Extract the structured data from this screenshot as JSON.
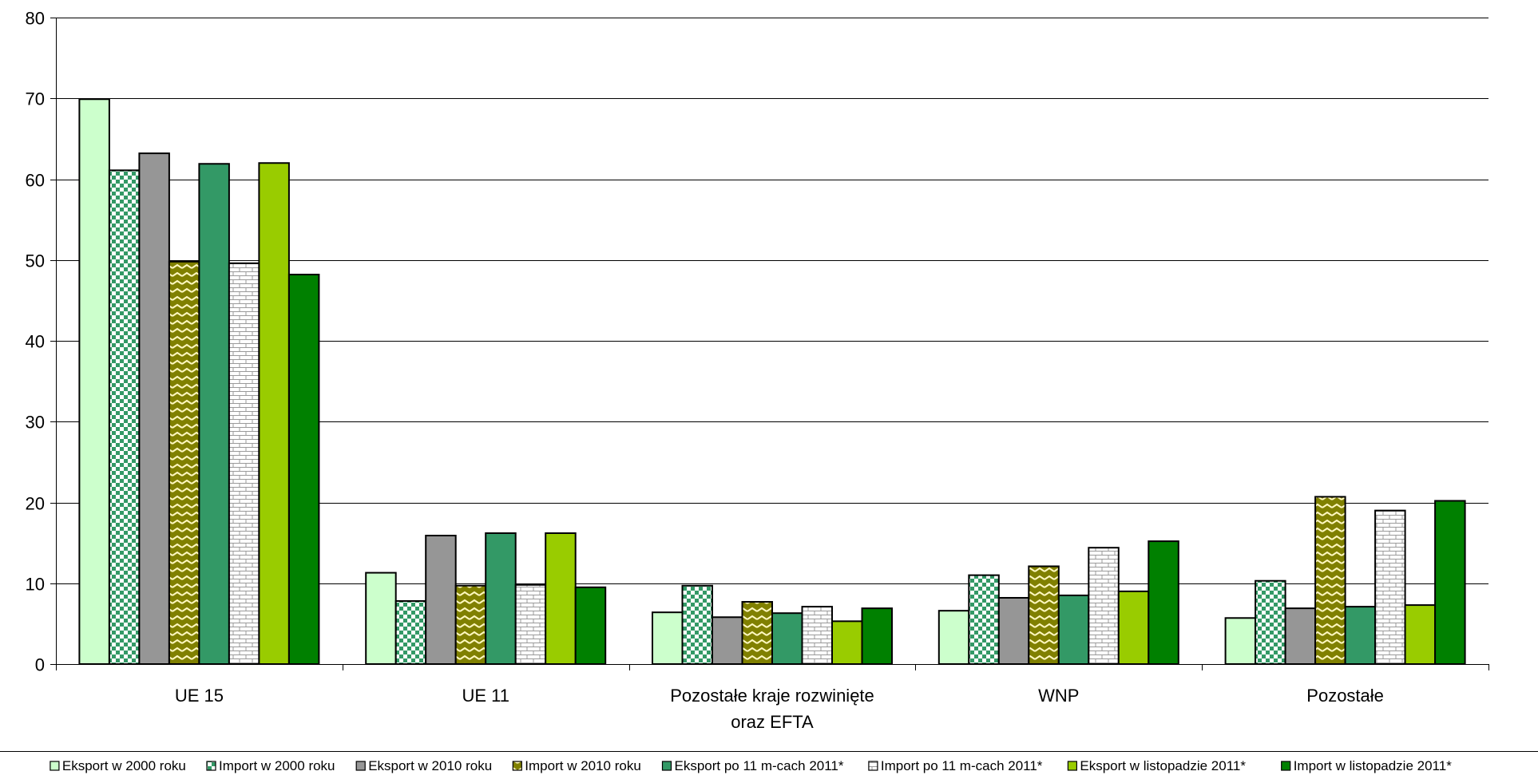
{
  "chart_data": {
    "type": "bar",
    "categories": [
      [
        "UE 15"
      ],
      [
        "UE 11"
      ],
      [
        "Pozostałe kraje rozwinięte",
        "oraz EFTA"
      ],
      [
        "WNP"
      ],
      [
        "Pozostałe"
      ]
    ],
    "series": [
      {
        "name": "Eksport w 2000 roku",
        "color": "#ccffcc",
        "pattern": "solid",
        "values": [
          69.9,
          11.3,
          6.4,
          6.6,
          5.7
        ]
      },
      {
        "name": "Import w 2000 roku",
        "color": "#339966",
        "pattern": "checker",
        "values": [
          61.1,
          7.8,
          9.7,
          11.0,
          10.3
        ]
      },
      {
        "name": "Eksport w 2010 roku",
        "color": "#969696",
        "pattern": "solid",
        "values": [
          63.2,
          15.9,
          5.8,
          8.2,
          6.9
        ]
      },
      {
        "name": "Import w 2010 roku",
        "color": "#808000",
        "pattern": "zigzag",
        "values": [
          49.8,
          9.7,
          7.7,
          12.1,
          20.7
        ]
      },
      {
        "name": "Eksport po 11 m-cach 2011*",
        "color": "#339966",
        "pattern": "solid",
        "values": [
          61.9,
          16.2,
          6.3,
          8.5,
          7.1
        ]
      },
      {
        "name": "Import po 11 m-cach 2011*",
        "color": "#c0c0c0",
        "pattern": "brick",
        "values": [
          49.6,
          9.8,
          7.1,
          14.4,
          19.0
        ]
      },
      {
        "name": "Eksport w listopadzie 2011*",
        "color": "#99cc00",
        "pattern": "solid",
        "values": [
          62.0,
          16.2,
          5.3,
          9.0,
          7.3
        ]
      },
      {
        "name": "Import w listopadzie 2011*",
        "color": "#008000",
        "pattern": "solid",
        "values": [
          48.2,
          9.5,
          6.9,
          15.2,
          20.2
        ]
      }
    ],
    "yticks": [
      "0",
      "10",
      "20",
      "30",
      "40",
      "50",
      "60",
      "70",
      "80"
    ],
    "ylim": [
      0,
      80
    ],
    "grid": true,
    "legend_position": "bottom"
  }
}
